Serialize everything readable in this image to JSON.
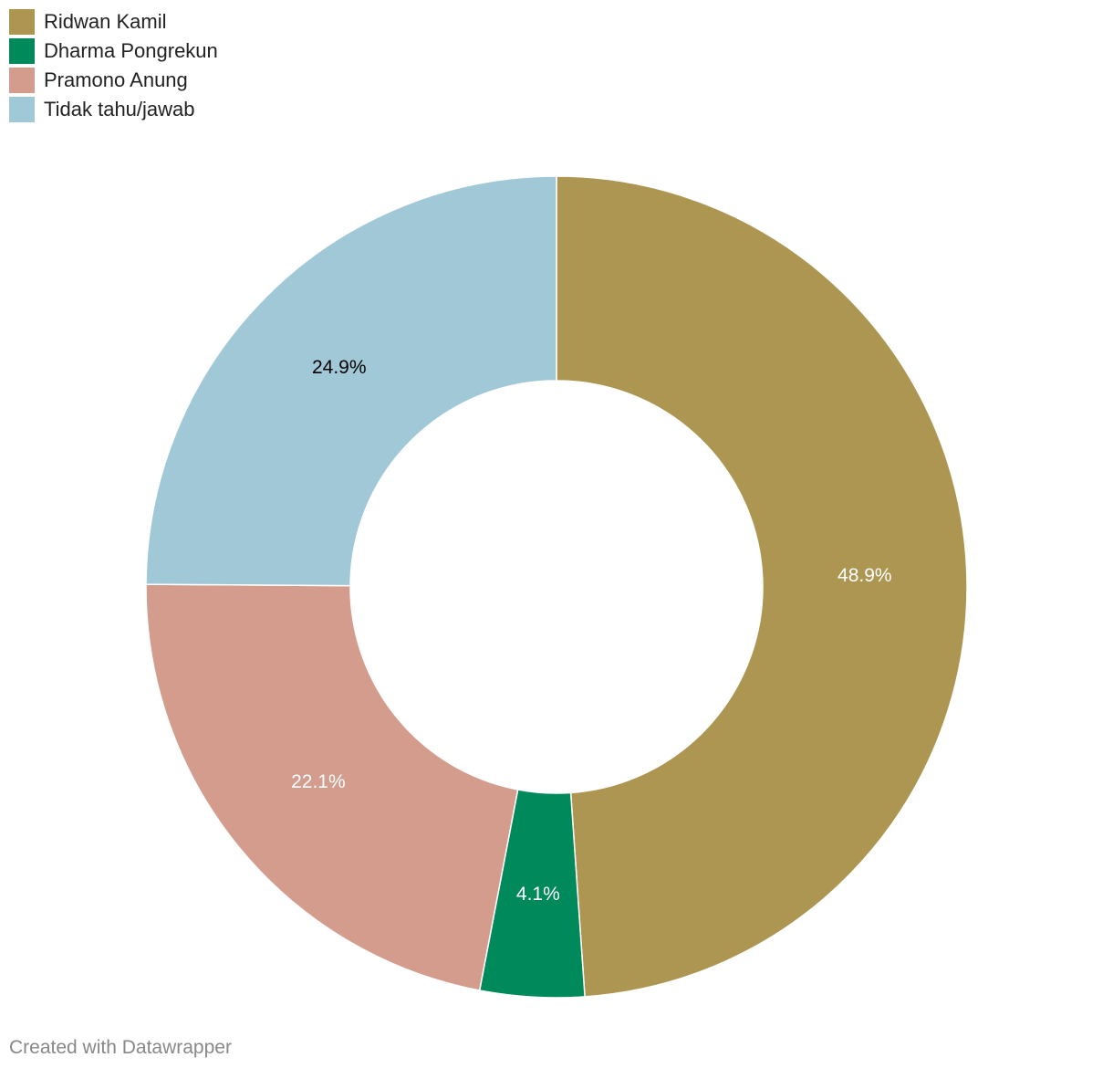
{
  "chart_data": {
    "type": "pie",
    "variant": "donut",
    "title": "",
    "legend_position": "top-left",
    "series": [
      {
        "name": "Ridwan Kamil",
        "value": 48.9,
        "label": "48.9%",
        "color": "#ad9651",
        "label_color": "#ffffff"
      },
      {
        "name": "Dharma Pongrekun",
        "value": 4.1,
        "label": "4.1%",
        "color": "#00895a",
        "label_color": "#ffffff"
      },
      {
        "name": "Pramono Anung",
        "value": 22.1,
        "label": "22.1%",
        "color": "#d39c8d",
        "label_color": "#ffffff"
      },
      {
        "name": "Tidak tahu/jawab",
        "value": 24.9,
        "label": "24.9%",
        "color": "#a1c8d7",
        "label_color": "#000000"
      }
    ]
  },
  "footer": {
    "credit": "Created with Datawrapper"
  }
}
